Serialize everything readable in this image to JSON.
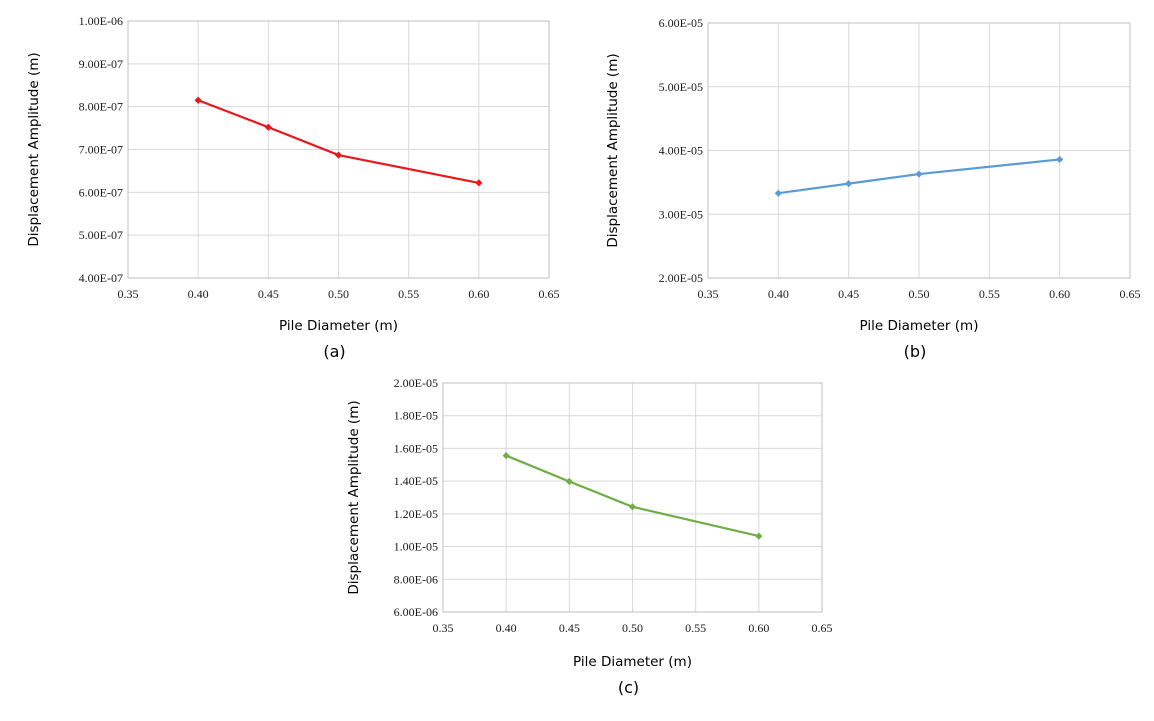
{
  "chart_data": [
    {
      "panel_label": "(a)",
      "type": "line",
      "xlabel": "Pile Diameter (m)",
      "ylabel": "Displacement Amplitude (m)",
      "xlim": [
        0.35,
        0.65
      ],
      "ylim": [
        4e-07,
        1e-06
      ],
      "xticks": [
        "0.35",
        "0.40",
        "0.45",
        "0.50",
        "0.55",
        "0.60",
        "0.65"
      ],
      "yticks": [
        "4.00E-07",
        "5.00E-07",
        "6.00E-07",
        "7.00E-07",
        "8.00E-07",
        "9.00E-07",
        "1.00E-06"
      ],
      "grid": true,
      "color": "#e8191e",
      "series": [
        {
          "x": [
            0.4,
            0.45,
            0.5,
            0.6
          ],
          "y": [
            8.15e-07,
            7.52e-07,
            6.87e-07,
            6.22e-07
          ]
        }
      ]
    },
    {
      "panel_label": "(b)",
      "type": "line",
      "xlabel": "Pile Diameter (m)",
      "ylabel": "Displacement Amplitude (m)",
      "xlim": [
        0.35,
        0.65
      ],
      "ylim": [
        2e-05,
        6e-05
      ],
      "xticks": [
        "0.35",
        "0.40",
        "0.45",
        "0.50",
        "0.55",
        "0.60",
        "0.65"
      ],
      "yticks": [
        "2.00E-05",
        "3.00E-05",
        "4.00E-05",
        "5.00E-05",
        "6.00E-05"
      ],
      "grid": true,
      "color": "#5b9bd5",
      "series": [
        {
          "x": [
            0.4,
            0.45,
            0.5,
            0.6
          ],
          "y": [
            3.33e-05,
            3.48e-05,
            3.63e-05,
            3.86e-05
          ]
        }
      ]
    },
    {
      "panel_label": "(c)",
      "type": "line",
      "xlabel": "Pile Diameter (m)",
      "ylabel": "Displacement Amplitude (m)",
      "xlim": [
        0.35,
        0.65
      ],
      "ylim": [
        6e-06,
        2e-05
      ],
      "xticks": [
        "0.35",
        "0.40",
        "0.45",
        "0.50",
        "0.55",
        "0.60",
        "0.65"
      ],
      "yticks": [
        "6.00E-06",
        "8.00E-06",
        "1.00E-05",
        "1.20E-05",
        "1.40E-05",
        "1.60E-05",
        "1.80E-05",
        "2.00E-05"
      ],
      "grid": true,
      "color": "#70ad47",
      "series": [
        {
          "x": [
            0.4,
            0.45,
            0.5,
            0.6
          ],
          "y": [
            1.556e-05,
            1.398e-05,
            1.243e-05,
            1.064e-05
          ]
        }
      ]
    }
  ]
}
